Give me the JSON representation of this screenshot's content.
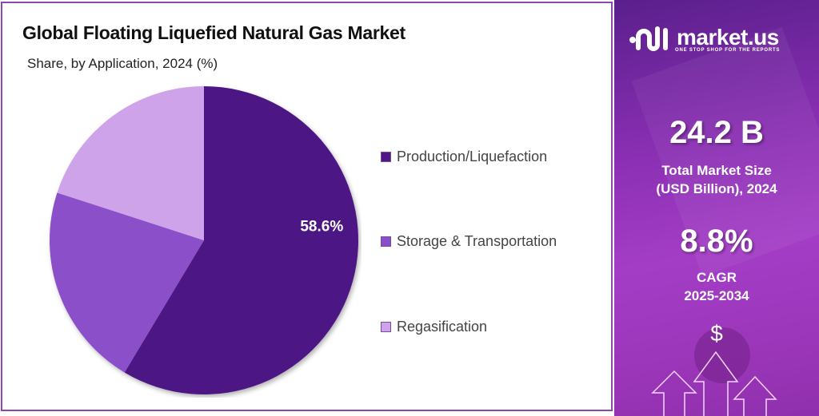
{
  "header": {
    "title": "Global Floating Liquefied Natural Gas Market",
    "subtitle": "Share, by Application, 2024 (%)"
  },
  "chart_data": {
    "type": "pie",
    "title": "Global Floating Liquefied Natural Gas Market",
    "subtitle": "Share, by Application, 2024 (%)",
    "categories": [
      "Production/Liquefaction",
      "Storage & Transportation",
      "Regasification"
    ],
    "values": [
      58.6,
      21.4,
      20.0
    ],
    "colors": [
      "#4e1785",
      "#8a4fc9",
      "#cfa3e9"
    ],
    "data_labels": [
      "58.6%",
      "",
      ""
    ],
    "legend_position": "right",
    "start_angle": "top, clockwise"
  },
  "legend": {
    "items": [
      {
        "label": "Production/Liquefaction",
        "color": "#4e1785"
      },
      {
        "label": "Storage & Transportation",
        "color": "#8a4fc9"
      },
      {
        "label": "Regasification",
        "color": "#cfa3e9"
      }
    ]
  },
  "sidebar": {
    "brand": "market.us",
    "tagline": "ONE STOP SHOP FOR THE REPORTS",
    "market_size_value": "24.2 B",
    "market_size_label_line1": "Total Market Size",
    "market_size_label_line2": "(USD Billion), 2024",
    "cagr_value": "8.8%",
    "cagr_label_line1": "CAGR",
    "cagr_label_line2": "2025-2034",
    "dollar_symbol": "$"
  }
}
